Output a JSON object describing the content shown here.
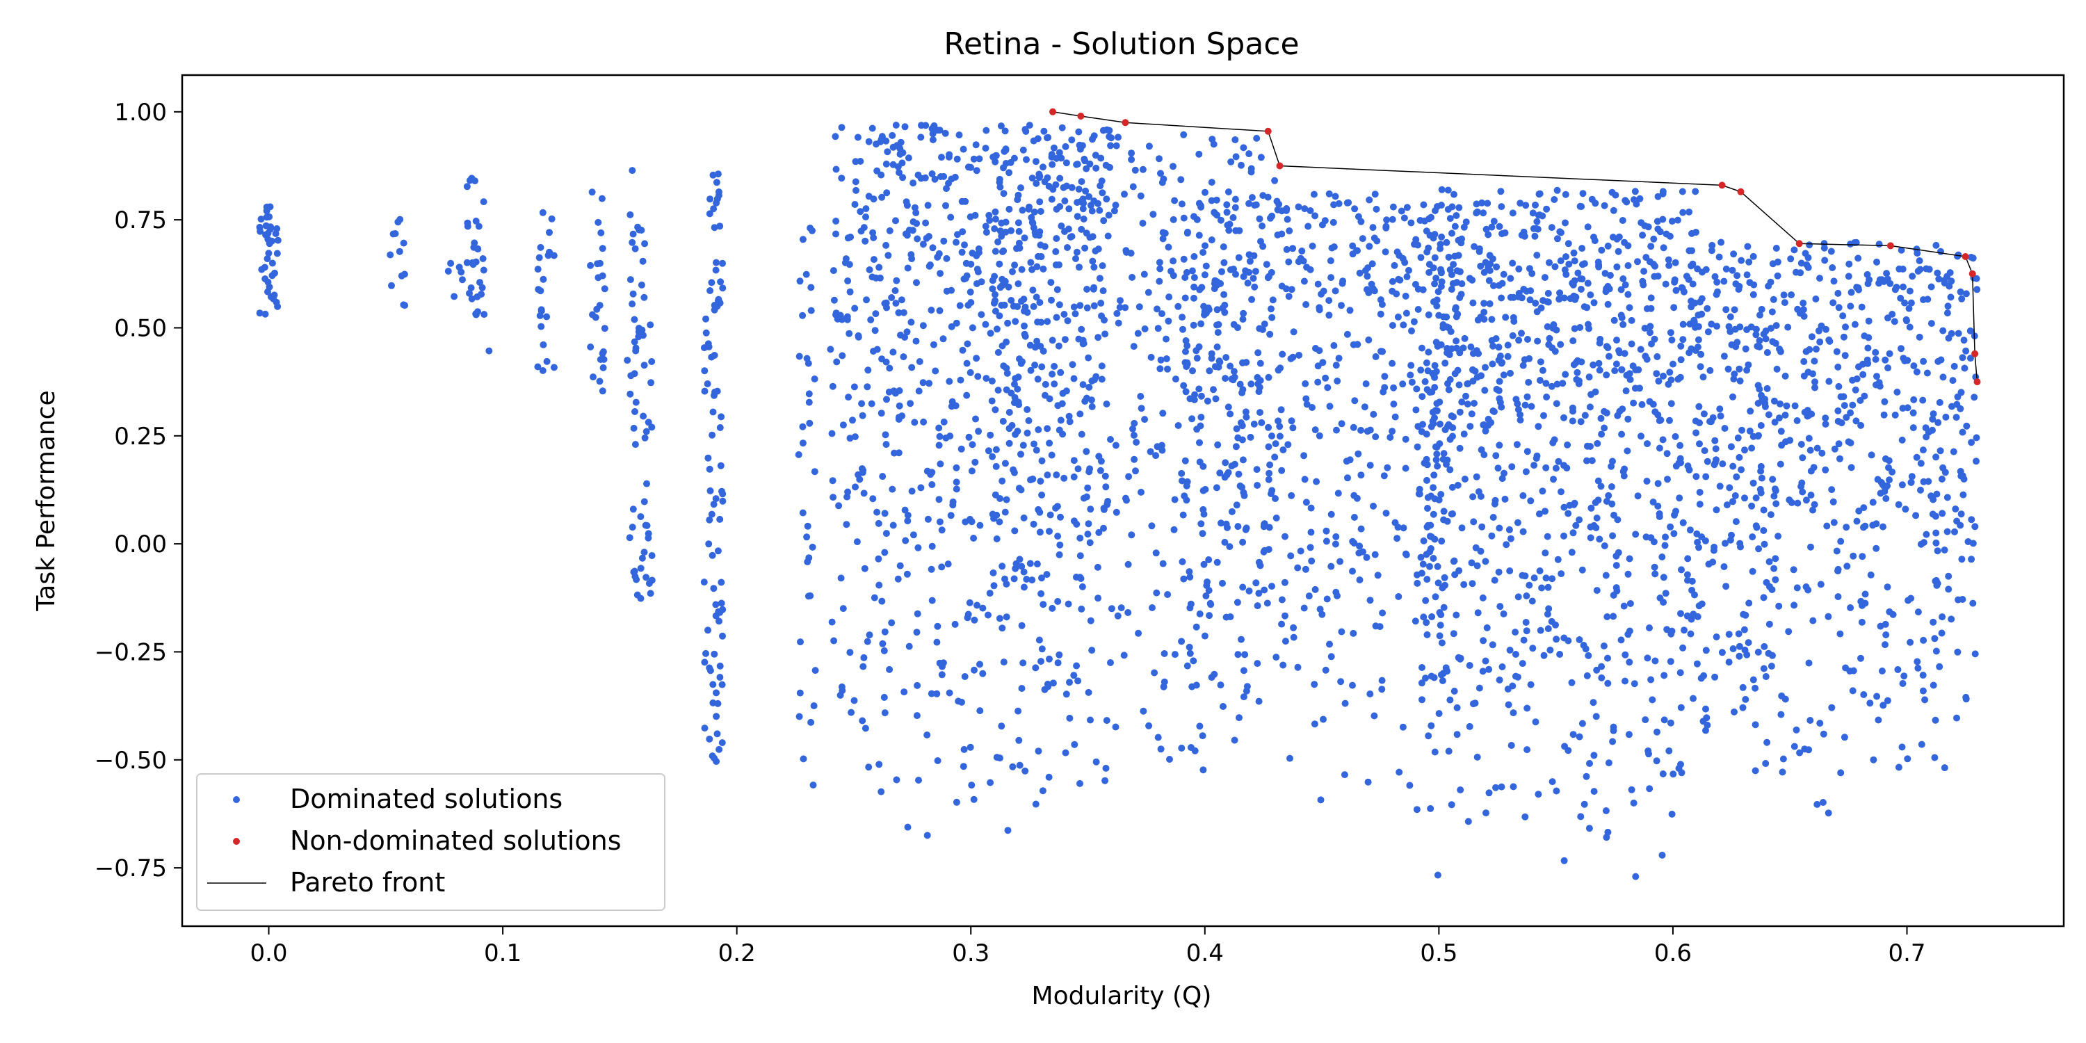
{
  "chart_data": {
    "type": "scatter",
    "title": "Retina - Solution Space",
    "xlabel": "Modularity (Q)",
    "ylabel": "Task Performance",
    "xlim": [
      -0.037,
      0.767
    ],
    "ylim": [
      -0.885,
      1.085
    ],
    "xticks": [
      0.0,
      0.1,
      0.2,
      0.3,
      0.4,
      0.5,
      0.6,
      0.7
    ],
    "xtick_labels": [
      "0.0",
      "0.1",
      "0.2",
      "0.3",
      "0.4",
      "0.5",
      "0.6",
      "0.7"
    ],
    "yticks": [
      1.0,
      0.75,
      0.5,
      0.25,
      0.0,
      -0.25,
      -0.5,
      -0.75
    ],
    "ytick_labels": [
      "1.00",
      "0.75",
      "0.50",
      "0.25",
      "0.00",
      "−0.25",
      "−0.50",
      "−0.75"
    ],
    "grid": false,
    "legend_placement": "lower-left",
    "colors": {
      "dominated": "#3366dd",
      "non_dominated": "#d62728",
      "pareto": "#000000"
    },
    "series": [
      {
        "name": "Dominated solutions",
        "kind": "points",
        "note_density": "thousands of points; clusters approximated",
        "clusters": [
          {
            "x": 0.0,
            "y_range": [
              0.53,
              0.79
            ],
            "n": 40
          },
          {
            "x": 0.055,
            "y_range": [
              0.53,
              0.77
            ],
            "n": 12
          },
          {
            "x": 0.08,
            "y_range": [
              0.55,
              0.66
            ],
            "n": 6
          },
          {
            "x": 0.088,
            "y_range": [
              0.53,
              0.87
            ],
            "n": 30
          },
          {
            "x": 0.098,
            "y_range": [
              0.44,
              0.46
            ],
            "n": 1
          },
          {
            "x": 0.118,
            "y_range": [
              0.37,
              0.78
            ],
            "n": 22
          },
          {
            "x": 0.14,
            "y_range": [
              0.35,
              0.87
            ],
            "n": 25
          },
          {
            "x": 0.157,
            "y_range": [
              -0.12,
              0.87
            ],
            "n": 40
          },
          {
            "x": 0.16,
            "y_range": [
              -0.13,
              0.75
            ],
            "n": 25
          },
          {
            "x": 0.19,
            "y_range": [
              -0.53,
              0.87
            ],
            "n": 90
          },
          {
            "x": 0.23,
            "y_range": [
              -0.59,
              0.8
            ],
            "n": 35
          },
          {
            "x": 0.3,
            "y_range": [
              -0.7,
              0.97
            ],
            "n": 700
          },
          {
            "x": 0.37,
            "y_range": [
              -0.57,
              0.95
            ],
            "n": 450
          },
          {
            "x": 0.45,
            "y_range": [
              -0.63,
              0.82
            ],
            "n": 550
          },
          {
            "x": 0.55,
            "y_range": [
              -0.79,
              0.82
            ],
            "n": 900
          },
          {
            "x": 0.67,
            "y_range": [
              -0.63,
              0.7
            ],
            "n": 700
          }
        ]
      },
      {
        "name": "Non-dominated solutions",
        "kind": "points",
        "points": [
          [
            0.335,
            1.0
          ],
          [
            0.347,
            0.99
          ],
          [
            0.366,
            0.975
          ],
          [
            0.427,
            0.955
          ],
          [
            0.432,
            0.875
          ],
          [
            0.621,
            0.83
          ],
          [
            0.629,
            0.815
          ],
          [
            0.654,
            0.695
          ],
          [
            0.693,
            0.69
          ],
          [
            0.725,
            0.665
          ],
          [
            0.728,
            0.625
          ],
          [
            0.729,
            0.44
          ],
          [
            0.73,
            0.375
          ]
        ]
      },
      {
        "name": "Pareto front",
        "kind": "line",
        "points": [
          [
            0.335,
            1.0
          ],
          [
            0.347,
            0.99
          ],
          [
            0.366,
            0.975
          ],
          [
            0.427,
            0.955
          ],
          [
            0.432,
            0.875
          ],
          [
            0.621,
            0.83
          ],
          [
            0.629,
            0.815
          ],
          [
            0.654,
            0.695
          ],
          [
            0.693,
            0.69
          ],
          [
            0.725,
            0.665
          ],
          [
            0.728,
            0.625
          ],
          [
            0.729,
            0.44
          ],
          [
            0.73,
            0.375
          ]
        ]
      }
    ]
  }
}
